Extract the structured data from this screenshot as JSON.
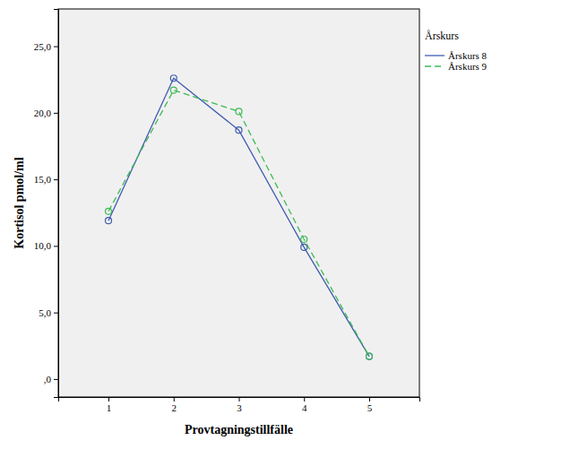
{
  "chart_data": {
    "type": "line",
    "x_label": "Provtagningstillfälle",
    "y_label": "Kortisol pmol/ml",
    "legend_title": "Årskurs",
    "legend": "top-right",
    "grid": false,
    "x": [
      1,
      2,
      3,
      4,
      5
    ],
    "xlim": [
      0.23,
      5.77
    ],
    "xticks": [
      1,
      2,
      3,
      4,
      5
    ],
    "ylim": [
      -1.35,
      27.8
    ],
    "yticks": [
      {
        "value": 0,
        "label": ",0"
      },
      {
        "value": 5,
        "label": "5,0"
      },
      {
        "value": 10,
        "label": "10,0"
      },
      {
        "value": 15,
        "label": "15,0"
      },
      {
        "value": 20,
        "label": "20,0"
      },
      {
        "value": 25,
        "label": "25,0"
      }
    ],
    "series": [
      {
        "name": "Årskurs 8",
        "color": "#3f5bb0",
        "marker": "circle",
        "line_style": "solid",
        "values": [
          11.9,
          22.6,
          18.7,
          9.9,
          1.7
        ]
      },
      {
        "name": "Årskurs 9",
        "color": "#3dbb55",
        "marker": "circle",
        "line_style": "dashed",
        "values": [
          12.6,
          21.7,
          20.1,
          10.5,
          1.7
        ]
      }
    ]
  }
}
